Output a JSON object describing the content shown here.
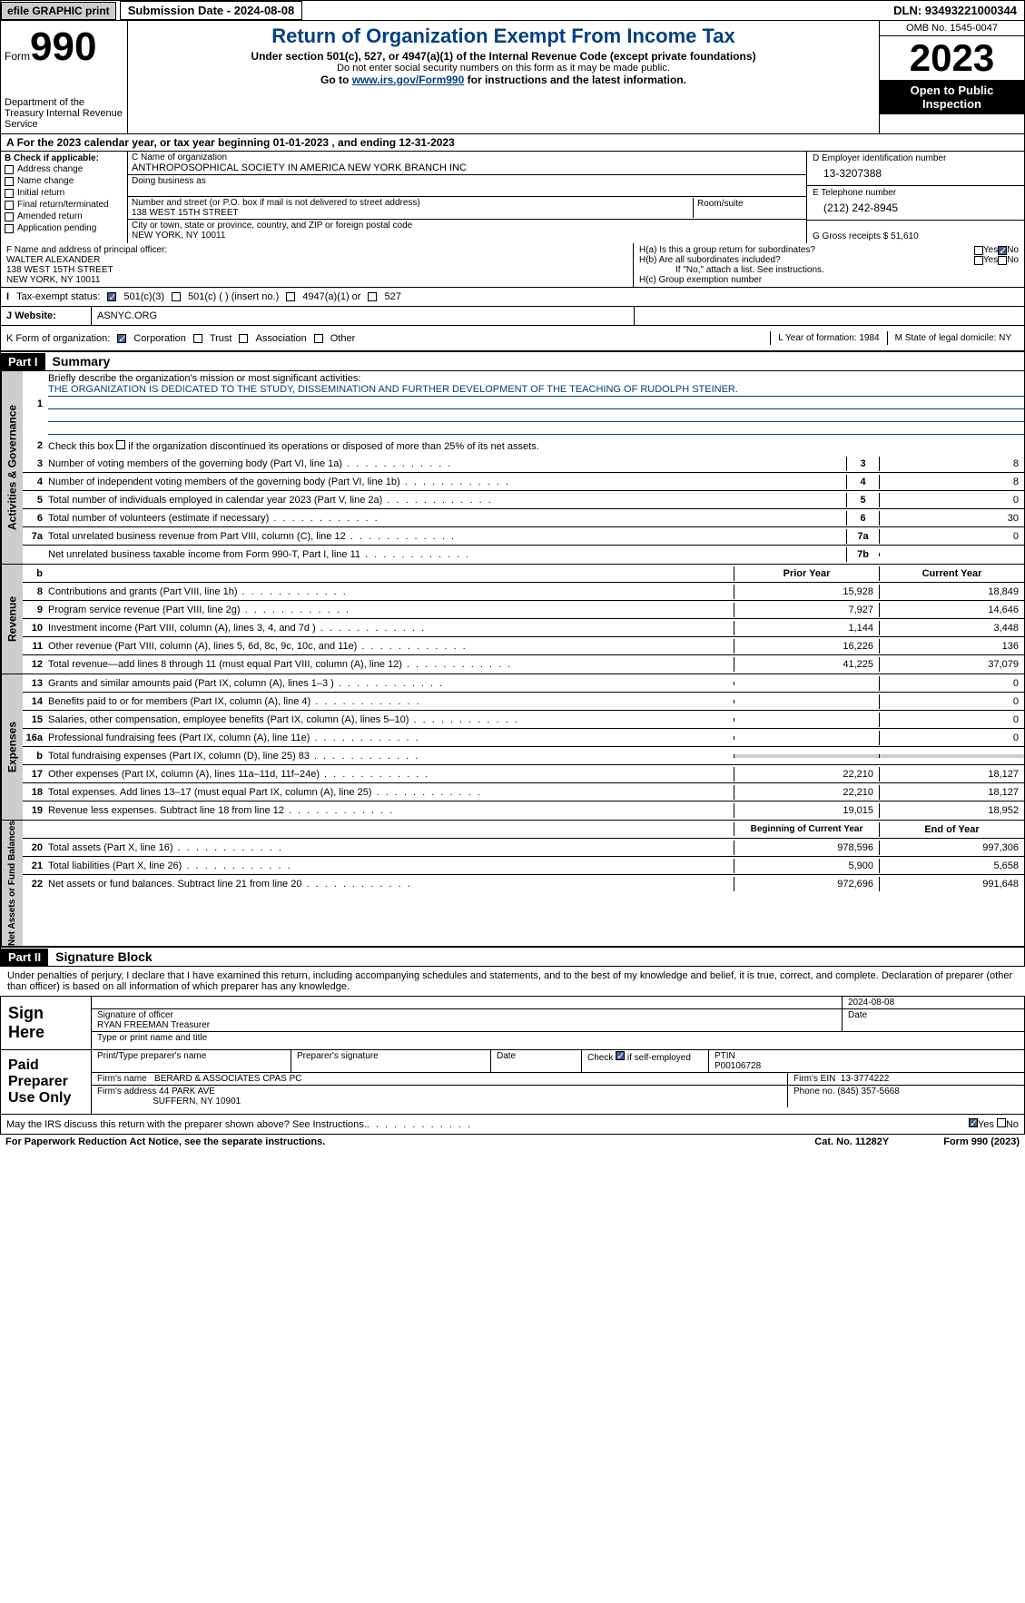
{
  "top": {
    "efile": "efile GRAPHIC print",
    "sub_date_label": "Submission Date - 2024-08-08",
    "dln": "DLN: 93493221000344"
  },
  "header": {
    "form_prefix": "Form",
    "form_no": "990",
    "dept": "Department of the Treasury Internal Revenue Service",
    "title": "Return of Organization Exempt From Income Tax",
    "subtitle": "Under section 501(c), 527, or 4947(a)(1) of the Internal Revenue Code (except private foundations)",
    "note1": "Do not enter social security numbers on this form as it may be made public.",
    "note2_pre": "Go to ",
    "note2_link": "www.irs.gov/Form990",
    "note2_post": " for instructions and the latest information.",
    "omb": "OMB No. 1545-0047",
    "year": "2023",
    "open": "Open to Public Inspection"
  },
  "a_line": "For the 2023 calendar year, or tax year beginning 01-01-2023   , and ending 12-31-2023",
  "b": {
    "hdr": "B Check if applicable:",
    "items": [
      "Address change",
      "Name change",
      "Initial return",
      "Final return/terminated",
      "Amended return",
      "Application pending"
    ]
  },
  "c": {
    "name_label": "C Name of organization",
    "name": "ANTHROPOSOPHICAL SOCIETY IN AMERICA NEW YORK BRANCH INC",
    "dba": "Doing business as",
    "addr_label": "Number and street (or P.O. box if mail is not delivered to street address)",
    "addr": "138 WEST 15TH STREET",
    "room": "Room/suite",
    "city_label": "City or town, state or province, country, and ZIP or foreign postal code",
    "city": "NEW YORK, NY  10011"
  },
  "d": {
    "label": "D Employer identification number",
    "val": "13-3207388"
  },
  "e": {
    "label": "E Telephone number",
    "val": "(212) 242-8945"
  },
  "g": {
    "label": "G Gross receipts $",
    "val": "51,610"
  },
  "f": {
    "label": "F  Name and address of principal officer:",
    "name": "WALTER ALEXANDER",
    "addr": "138 WEST 15TH STREET",
    "city": "NEW YORK, NY  10011"
  },
  "h": {
    "a_label": "H(a)  Is this a group return for subordinates?",
    "b_label": "H(b)  Are all subordinates included?",
    "note": "If \"No,\" attach a list. See instructions.",
    "c_label": "H(c)  Group exemption number"
  },
  "i": {
    "label": "Tax-exempt status:",
    "o1": "501(c)(3)",
    "o2": "501(c) (  ) (insert no.)",
    "o3": "4947(a)(1) or",
    "o4": "527"
  },
  "j": {
    "label": "Website:",
    "val": "ASNYC.ORG"
  },
  "k": {
    "label": "K Form of organization:",
    "o1": "Corporation",
    "o2": "Trust",
    "o3": "Association",
    "o4": "Other",
    "l_label": "L Year of formation: 1984",
    "m_label": "M State of legal domicile: NY"
  },
  "part1": {
    "label": "Part I",
    "title": "Summary"
  },
  "governance": {
    "side": "Activities & Governance",
    "l1": "Briefly describe the organization's mission or most significant activities:",
    "mission": "THE ORGANIZATION IS DEDICATED TO THE STUDY, DISSEMINATION AND FURTHER DEVELOPMENT OF THE TEACHING OF RUDOLPH STEINER.",
    "l2": "Check this box      if the organization discontinued its operations or disposed of more than 25% of its net assets.",
    "rows": [
      {
        "n": "3",
        "t": "Number of voting members of the governing body (Part VI, line 1a)",
        "box": "3",
        "v": "8"
      },
      {
        "n": "4",
        "t": "Number of independent voting members of the governing body (Part VI, line 1b)",
        "box": "4",
        "v": "8"
      },
      {
        "n": "5",
        "t": "Total number of individuals employed in calendar year 2023 (Part V, line 2a)",
        "box": "5",
        "v": "0"
      },
      {
        "n": "6",
        "t": "Total number of volunteers (estimate if necessary)",
        "box": "6",
        "v": "30"
      },
      {
        "n": "7a",
        "t": "Total unrelated business revenue from Part VIII, column (C), line 12",
        "box": "7a",
        "v": "0"
      },
      {
        "n": "",
        "t": "Net unrelated business taxable income from Form 990-T, Part I, line 11",
        "box": "7b",
        "v": ""
      }
    ]
  },
  "revenue": {
    "side": "Revenue",
    "hdr_prior": "Prior Year",
    "hdr_curr": "Current Year",
    "rows": [
      {
        "n": "8",
        "t": "Contributions and grants (Part VIII, line 1h)",
        "p": "15,928",
        "c": "18,849"
      },
      {
        "n": "9",
        "t": "Program service revenue (Part VIII, line 2g)",
        "p": "7,927",
        "c": "14,646"
      },
      {
        "n": "10",
        "t": "Investment income (Part VIII, column (A), lines 3, 4, and 7d )",
        "p": "1,144",
        "c": "3,448"
      },
      {
        "n": "11",
        "t": "Other revenue (Part VIII, column (A), lines 5, 6d, 8c, 9c, 10c, and 11e)",
        "p": "16,226",
        "c": "136"
      },
      {
        "n": "12",
        "t": "Total revenue—add lines 8 through 11 (must equal Part VIII, column (A), line 12)",
        "p": "41,225",
        "c": "37,079"
      }
    ]
  },
  "expenses": {
    "side": "Expenses",
    "rows": [
      {
        "n": "13",
        "t": "Grants and similar amounts paid (Part IX, column (A), lines 1–3 )",
        "p": "",
        "c": "0"
      },
      {
        "n": "14",
        "t": "Benefits paid to or for members (Part IX, column (A), line 4)",
        "p": "",
        "c": "0"
      },
      {
        "n": "15",
        "t": "Salaries, other compensation, employee benefits (Part IX, column (A), lines 5–10)",
        "p": "",
        "c": "0"
      },
      {
        "n": "16a",
        "t": "Professional fundraising fees (Part IX, column (A), line 11e)",
        "p": "",
        "c": "0"
      },
      {
        "n": "b",
        "t": "Total fundraising expenses (Part IX, column (D), line 25) 83",
        "p": "shaded",
        "c": "shaded"
      },
      {
        "n": "17",
        "t": "Other expenses (Part IX, column (A), lines 11a–11d, 11f–24e)",
        "p": "22,210",
        "c": "18,127"
      },
      {
        "n": "18",
        "t": "Total expenses. Add lines 13–17 (must equal Part IX, column (A), line 25)",
        "p": "22,210",
        "c": "18,127"
      },
      {
        "n": "19",
        "t": "Revenue less expenses. Subtract line 18 from line 12",
        "p": "19,015",
        "c": "18,952"
      }
    ]
  },
  "net": {
    "side": "Net Assets or Fund Balances",
    "hdr_beg": "Beginning of Current Year",
    "hdr_end": "End of Year",
    "rows": [
      {
        "n": "20",
        "t": "Total assets (Part X, line 16)",
        "p": "978,596",
        "c": "997,306"
      },
      {
        "n": "21",
        "t": "Total liabilities (Part X, line 26)",
        "p": "5,900",
        "c": "5,658"
      },
      {
        "n": "22",
        "t": "Net assets or fund balances. Subtract line 21 from line 20",
        "p": "972,696",
        "c": "991,648"
      }
    ]
  },
  "part2": {
    "label": "Part II",
    "title": "Signature Block"
  },
  "sig": {
    "decl": "Under penalties of perjury, I declare that I have examined this return, including accompanying schedules and statements, and to the best of my knowledge and belief, it is true, correct, and complete. Declaration of preparer (other than officer) is based on all information of which preparer has any knowledge.",
    "sign_here": "Sign Here",
    "date": "2024-08-08",
    "sig_officer": "Signature of officer",
    "officer": "RYAN FREEMAN  Treasurer",
    "type_name": "Type or print name and title",
    "date_lbl": "Date",
    "paid": "Paid Preparer Use Only",
    "prep_name": "Print/Type preparer's name",
    "prep_sig": "Preparer's signature",
    "check_se": "Check        if self-employed",
    "ptin_lbl": "PTIN",
    "ptin": "P00106728",
    "firm_name_lbl": "Firm's name",
    "firm_name": "BERARD & ASSOCIATES CPAS PC",
    "firm_ein_lbl": "Firm's EIN",
    "firm_ein": "13-3774222",
    "firm_addr_lbl": "Firm's address",
    "firm_addr1": "44 PARK AVE",
    "firm_addr2": "SUFFERN, NY  10901",
    "phone_lbl": "Phone no.",
    "phone": "(845) 357-5668"
  },
  "discuss": "May the IRS discuss this return with the preparer shown above? See Instructions.",
  "footer": {
    "left": "For Paperwork Reduction Act Notice, see the separate instructions.",
    "mid": "Cat. No. 11282Y",
    "right": "Form 990 (2023)"
  }
}
